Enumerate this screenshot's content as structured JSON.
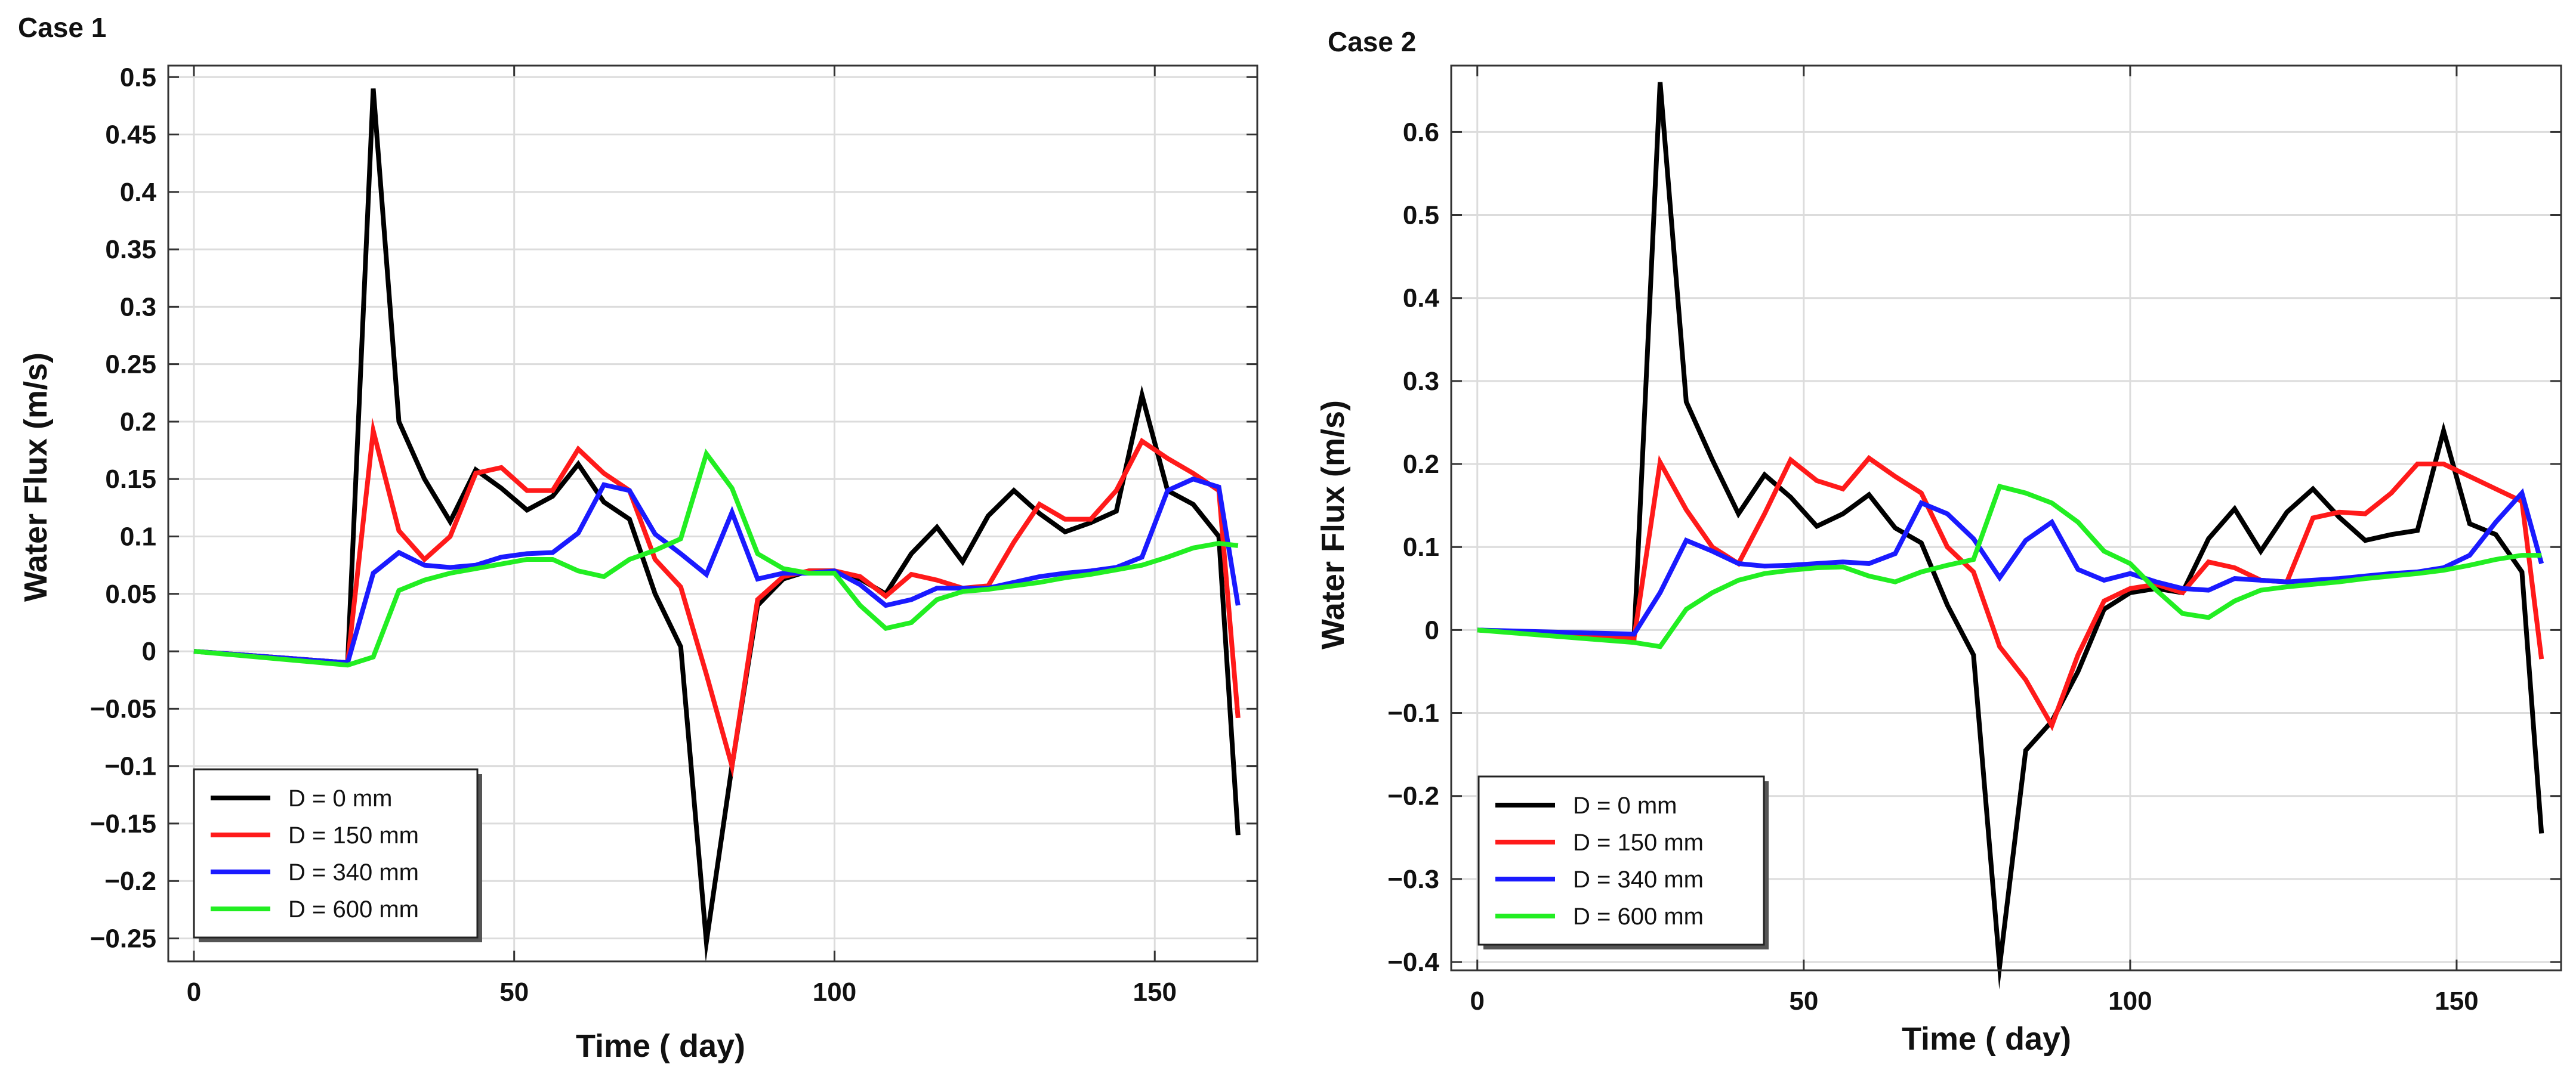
{
  "chart_data": [
    {
      "type": "line",
      "title": "Case 1",
      "xlabel": "Time ( day)",
      "ylabel": "Water Flux (m/s)",
      "xlim": [
        -4,
        166
      ],
      "ylim": [
        -0.27,
        0.51
      ],
      "xticks": [
        0,
        50,
        100,
        150
      ],
      "xtick_labels": [
        "0",
        "50",
        "100",
        "150"
      ],
      "yticks": [
        0.5,
        0.45,
        0.4,
        0.35,
        0.3,
        0.25,
        0.2,
        0.15,
        0.1,
        0.05,
        0,
        -0.05,
        -0.1,
        -0.15,
        -0.2,
        -0.25
      ],
      "ytick_labels": [
        "0.5",
        "0.45",
        "0.4",
        "0.35",
        "0.3",
        "0.25",
        "0.2",
        "0.15",
        "0.1",
        "0.05",
        "0",
        "−0.05",
        "−0.1",
        "−0.15",
        "−0.2",
        "−0.25"
      ],
      "grid": true,
      "legend_position": "bottom-left",
      "series": [
        {
          "name": "D = 0 mm",
          "color": "#000000",
          "x": [
            0,
            24,
            28,
            32,
            36,
            40,
            44,
            48,
            52,
            56,
            60,
            64,
            68,
            72,
            76,
            80,
            84,
            88,
            92,
            96,
            100,
            104,
            108,
            112,
            116,
            120,
            124,
            128,
            132,
            136,
            140,
            144,
            148,
            152,
            156,
            160,
            163
          ],
          "y": [
            0,
            -0.01,
            0.49,
            0.2,
            0.15,
            0.113,
            0.158,
            0.142,
            0.123,
            0.135,
            0.163,
            0.13,
            0.115,
            0.05,
            0.004,
            -0.253,
            -0.1,
            0.04,
            0.063,
            0.07,
            0.07,
            0.063,
            0.05,
            0.085,
            0.108,
            0.078,
            0.118,
            0.14,
            0.12,
            0.104,
            0.112,
            0.122,
            0.223,
            0.14,
            0.128,
            0.1,
            -0.16
          ]
        },
        {
          "name": "D = 150 mm",
          "color": "#ff1a1a",
          "x": [
            0,
            24,
            28,
            32,
            36,
            40,
            44,
            48,
            52,
            56,
            60,
            64,
            68,
            72,
            76,
            80,
            84,
            88,
            92,
            96,
            100,
            104,
            108,
            112,
            116,
            120,
            124,
            128,
            132,
            136,
            140,
            144,
            148,
            152,
            156,
            160,
            163
          ],
          "y": [
            0,
            -0.01,
            0.192,
            0.105,
            0.08,
            0.1,
            0.155,
            0.16,
            0.14,
            0.14,
            0.176,
            0.155,
            0.14,
            0.08,
            0.056,
            -0.02,
            -0.1,
            0.045,
            0.065,
            0.07,
            0.07,
            0.065,
            0.048,
            0.067,
            0.062,
            0.055,
            0.057,
            0.095,
            0.128,
            0.115,
            0.115,
            0.14,
            0.183,
            0.168,
            0.155,
            0.14,
            -0.058
          ]
        },
        {
          "name": "D = 340 mm",
          "color": "#1a1aff",
          "x": [
            0,
            24,
            28,
            32,
            36,
            40,
            44,
            48,
            52,
            56,
            60,
            64,
            68,
            72,
            76,
            80,
            84,
            88,
            92,
            96,
            100,
            104,
            108,
            112,
            116,
            120,
            124,
            128,
            132,
            136,
            140,
            144,
            148,
            152,
            156,
            160,
            163
          ],
          "y": [
            0,
            -0.01,
            0.068,
            0.086,
            0.075,
            0.073,
            0.075,
            0.082,
            0.085,
            0.086,
            0.103,
            0.145,
            0.14,
            0.102,
            0.085,
            0.067,
            0.121,
            0.063,
            0.068,
            0.068,
            0.07,
            0.058,
            0.04,
            0.045,
            0.055,
            0.055,
            0.055,
            0.06,
            0.065,
            0.068,
            0.07,
            0.073,
            0.082,
            0.14,
            0.15,
            0.143,
            0.04
          ]
        },
        {
          "name": "D = 600 mm",
          "color": "#22ee22",
          "x": [
            0,
            24,
            28,
            32,
            36,
            40,
            44,
            48,
            52,
            56,
            60,
            64,
            68,
            72,
            76,
            80,
            84,
            88,
            92,
            96,
            100,
            104,
            108,
            112,
            116,
            120,
            124,
            128,
            132,
            136,
            140,
            144,
            148,
            152,
            156,
            160,
            163
          ],
          "y": [
            0,
            -0.012,
            -0.005,
            0.053,
            0.062,
            0.068,
            0.072,
            0.076,
            0.08,
            0.08,
            0.07,
            0.065,
            0.08,
            0.088,
            0.098,
            0.172,
            0.142,
            0.085,
            0.072,
            0.068,
            0.068,
            0.04,
            0.02,
            0.025,
            0.045,
            0.052,
            0.054,
            0.057,
            0.06,
            0.064,
            0.067,
            0.071,
            0.075,
            0.082,
            0.09,
            0.094,
            0.092
          ]
        }
      ]
    },
    {
      "type": "line",
      "title": "Case 2",
      "xlabel": "Time ( day)",
      "ylabel": "Water Flux (m/s)",
      "xlim": [
        -4,
        166
      ],
      "ylim": [
        -0.41,
        0.68
      ],
      "xticks": [
        0,
        50,
        100,
        150
      ],
      "xtick_labels": [
        "0",
        "50",
        "100",
        "150"
      ],
      "yticks": [
        0.6,
        0.5,
        0.4,
        0.3,
        0.2,
        0.1,
        0,
        -0.1,
        -0.2,
        -0.3,
        -0.4
      ],
      "ytick_labels": [
        "0.6",
        "0.5",
        "0.4",
        "0.3",
        "0.2",
        "0.1",
        "0",
        "−0.1",
        "−0.2",
        "−0.3",
        "−0.4"
      ],
      "grid": true,
      "legend_position": "bottom-left",
      "series": [
        {
          "name": "D = 0 mm",
          "color": "#000000",
          "x": [
            0,
            24,
            28,
            32,
            36,
            40,
            44,
            48,
            52,
            56,
            60,
            64,
            68,
            72,
            76,
            80,
            84,
            88,
            92,
            96,
            100,
            104,
            108,
            112,
            116,
            120,
            124,
            128,
            132,
            136,
            140,
            144,
            148,
            152,
            156,
            160,
            163
          ],
          "y": [
            0,
            -0.01,
            0.66,
            0.275,
            0.205,
            0.14,
            0.187,
            0.16,
            0.125,
            0.14,
            0.163,
            0.123,
            0.105,
            0.03,
            -0.03,
            -0.405,
            -0.145,
            -0.11,
            -0.05,
            0.025,
            0.045,
            0.05,
            0.045,
            0.11,
            0.146,
            0.095,
            0.142,
            0.17,
            0.136,
            0.108,
            0.115,
            0.12,
            0.24,
            0.128,
            0.115,
            0.07,
            -0.245
          ]
        },
        {
          "name": "D = 150 mm",
          "color": "#ff1a1a",
          "x": [
            0,
            24,
            28,
            32,
            36,
            40,
            44,
            48,
            52,
            56,
            60,
            64,
            68,
            72,
            76,
            80,
            84,
            88,
            92,
            96,
            100,
            104,
            108,
            112,
            116,
            120,
            124,
            128,
            132,
            136,
            140,
            144,
            148,
            152,
            156,
            160,
            163
          ],
          "y": [
            0,
            -0.01,
            0.202,
            0.145,
            0.1,
            0.08,
            0.14,
            0.205,
            0.18,
            0.17,
            0.207,
            0.185,
            0.165,
            0.1,
            0.07,
            -0.02,
            -0.06,
            -0.115,
            -0.03,
            0.035,
            0.05,
            0.055,
            0.045,
            0.082,
            0.075,
            0.06,
            0.058,
            0.135,
            0.142,
            0.14,
            0.165,
            0.2,
            0.2,
            0.185,
            0.17,
            0.155,
            -0.035
          ]
        },
        {
          "name": "D = 340 mm",
          "color": "#1a1aff",
          "x": [
            0,
            24,
            28,
            32,
            36,
            40,
            44,
            48,
            52,
            56,
            60,
            64,
            68,
            72,
            76,
            80,
            84,
            88,
            92,
            96,
            100,
            104,
            108,
            112,
            116,
            120,
            124,
            128,
            132,
            136,
            140,
            144,
            148,
            152,
            156,
            160,
            163
          ],
          "y": [
            0,
            -0.005,
            0.045,
            0.108,
            0.095,
            0.08,
            0.077,
            0.078,
            0.08,
            0.082,
            0.08,
            0.092,
            0.153,
            0.14,
            0.11,
            0.063,
            0.108,
            0.13,
            0.073,
            0.06,
            0.068,
            0.058,
            0.05,
            0.048,
            0.062,
            0.06,
            0.058,
            0.06,
            0.062,
            0.065,
            0.068,
            0.07,
            0.075,
            0.09,
            0.13,
            0.165,
            0.08
          ]
        },
        {
          "name": "D = 600 mm",
          "color": "#22ee22",
          "x": [
            0,
            24,
            28,
            32,
            36,
            40,
            44,
            48,
            52,
            56,
            60,
            64,
            68,
            72,
            76,
            80,
            84,
            88,
            92,
            96,
            100,
            104,
            108,
            112,
            116,
            120,
            124,
            128,
            132,
            136,
            140,
            144,
            148,
            152,
            156,
            160,
            163
          ],
          "y": [
            0,
            -0.015,
            -0.02,
            0.025,
            0.045,
            0.06,
            0.068,
            0.072,
            0.075,
            0.076,
            0.065,
            0.058,
            0.07,
            0.078,
            0.085,
            0.173,
            0.165,
            0.153,
            0.13,
            0.095,
            0.08,
            0.048,
            0.02,
            0.015,
            0.035,
            0.048,
            0.052,
            0.055,
            0.058,
            0.062,
            0.065,
            0.068,
            0.072,
            0.078,
            0.085,
            0.09,
            0.09
          ]
        }
      ]
    }
  ]
}
